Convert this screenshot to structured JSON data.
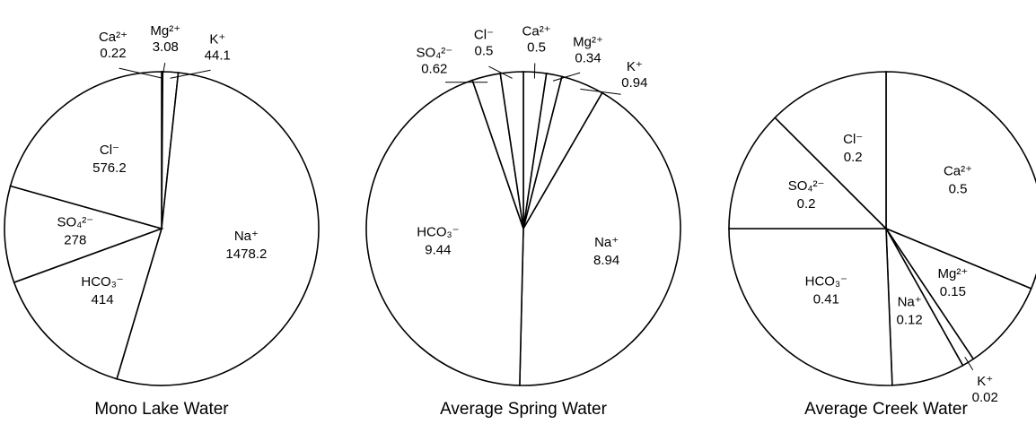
{
  "chart_data": [
    {
      "type": "pie",
      "title": "Mono Lake Water",
      "color": "#ffffff",
      "categories": [
        "Ca²⁺",
        "Mg²⁺",
        "K⁺",
        "Na⁺",
        "HCO₃⁻",
        "SO₄²⁻",
        "Cl⁻"
      ],
      "values": [
        0.22,
        3.08,
        44.1,
        1478.2,
        414,
        278,
        576.2
      ]
    },
    {
      "type": "pie",
      "title": "Average Spring Water",
      "color": "#ffffff",
      "categories": [
        "Ca²⁺",
        "Mg²⁺",
        "K⁺",
        "Na⁺",
        "HCO₃⁻",
        "SO₄²⁻",
        "Cl⁻"
      ],
      "values": [
        0.5,
        0.34,
        0.94,
        8.94,
        9.44,
        0.62,
        0.5
      ]
    },
    {
      "type": "pie",
      "title": "Average Creek Water",
      "color": "#ffffff",
      "categories": [
        "Ca²⁺",
        "Mg²⁺",
        "K⁺",
        "Na⁺",
        "HCO₃⁻",
        "SO₄²⁻",
        "Cl⁻"
      ],
      "values": [
        0.5,
        0.15,
        0.02,
        0.12,
        0.41,
        0.2,
        0.2
      ]
    }
  ]
}
